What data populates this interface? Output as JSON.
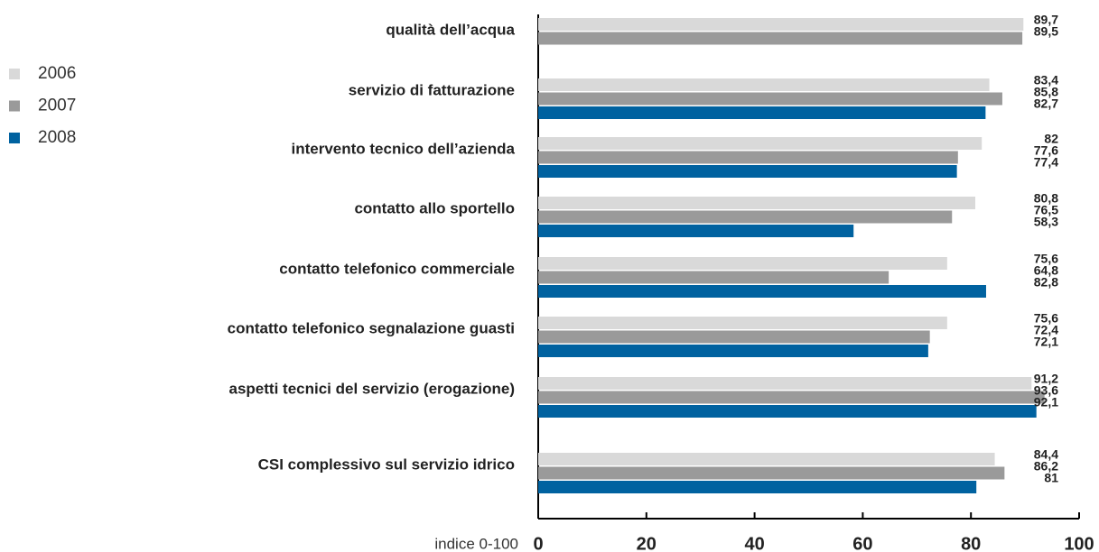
{
  "chart_data": {
    "type": "bar",
    "orientation": "horizontal",
    "categories": [
      "qualità dell’acqua",
      "servizio di fatturazione",
      "intervento tecnico dell’azienda",
      "contatto allo sportello",
      "contatto telefonico commerciale",
      "contatto telefonico segnalazione guasti",
      "aspetti tecnici del servizio (erogazione)",
      "CSI complessivo sul servizio idrico"
    ],
    "series": [
      {
        "name": "2006",
        "color": "#d9d9d9",
        "values": [
          89.7,
          83.4,
          82,
          80.8,
          75.6,
          75.6,
          91.2,
          84.4
        ],
        "value_labels": [
          "89,7",
          "83,4",
          "82",
          "80,8",
          "75,6",
          "75,6",
          "91,2",
          "84,4"
        ]
      },
      {
        "name": "2007",
        "color": "#9a9a9a",
        "values": [
          89.5,
          85.8,
          77.6,
          76.5,
          64.8,
          72.4,
          93.6,
          86.2
        ],
        "value_labels": [
          "89,5",
          "85,8",
          "77,6",
          "76,5",
          "64,8",
          "72,4",
          "93,6",
          "86,2"
        ]
      },
      {
        "name": "2008",
        "color": "#0062a0",
        "values": [
          null,
          82.7,
          77.4,
          58.3,
          82.8,
          72.1,
          92.1,
          81
        ],
        "value_labels": [
          null,
          "82,7",
          "77,4",
          "58,3",
          "82,8",
          "72,1",
          "92,1",
          "81"
        ]
      }
    ],
    "xlabel": "indice 0-100",
    "xlim": [
      0,
      100
    ],
    "xticks": [
      0,
      20,
      40,
      60,
      80,
      100
    ],
    "legend": "top-left"
  }
}
